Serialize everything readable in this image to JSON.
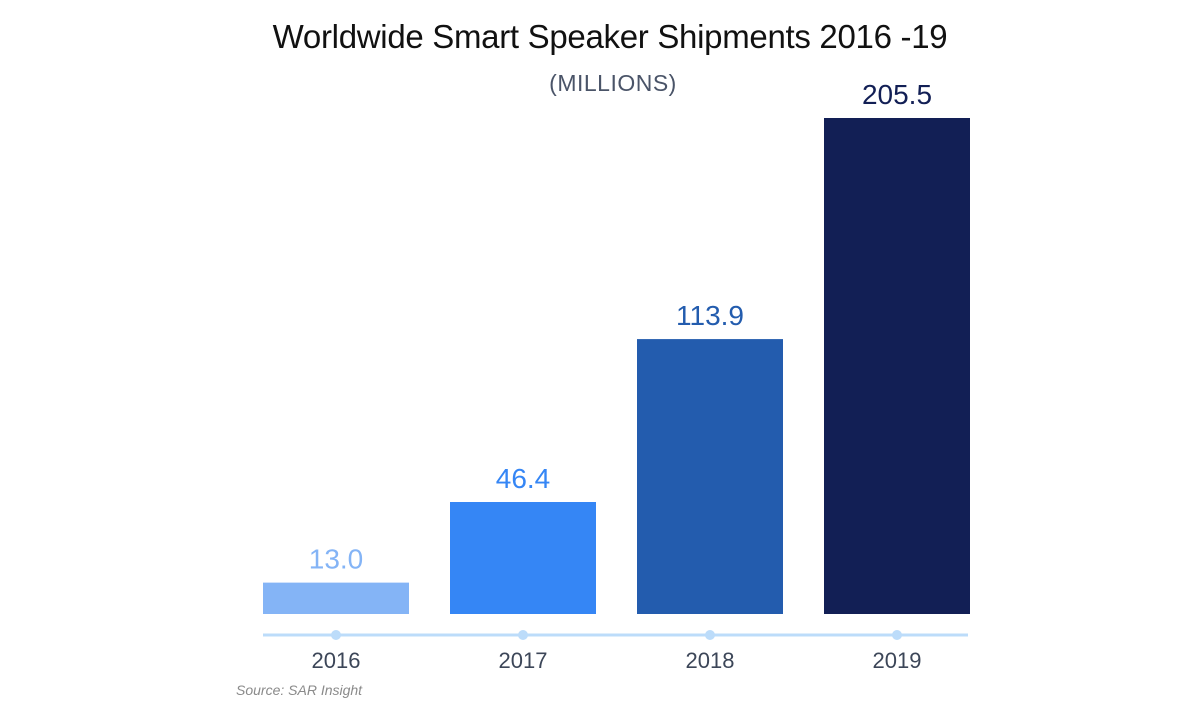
{
  "chart_data": {
    "type": "bar",
    "title": "Worldwide Smart Speaker Shipments 2016 -19",
    "subtitle": "(MILLIONS)",
    "categories": [
      "2016",
      "2017",
      "2018",
      "2019"
    ],
    "values": [
      13.0,
      46.4,
      113.9,
      205.5
    ],
    "value_labels": [
      "13.0",
      "46.4",
      "113.9",
      "205.5"
    ],
    "bar_colors": [
      "#84b4f6",
      "#3586f5",
      "#235cae",
      "#121f55"
    ],
    "label_colors": [
      "#84b4f6",
      "#3586f5",
      "#235cae",
      "#121f55"
    ],
    "axis_color": "#bcdcfa",
    "ylim": [
      0,
      205.5
    ],
    "xlabel": "",
    "ylabel": "",
    "grid": false,
    "legend": "none"
  },
  "source": "Source: SAR Insight"
}
